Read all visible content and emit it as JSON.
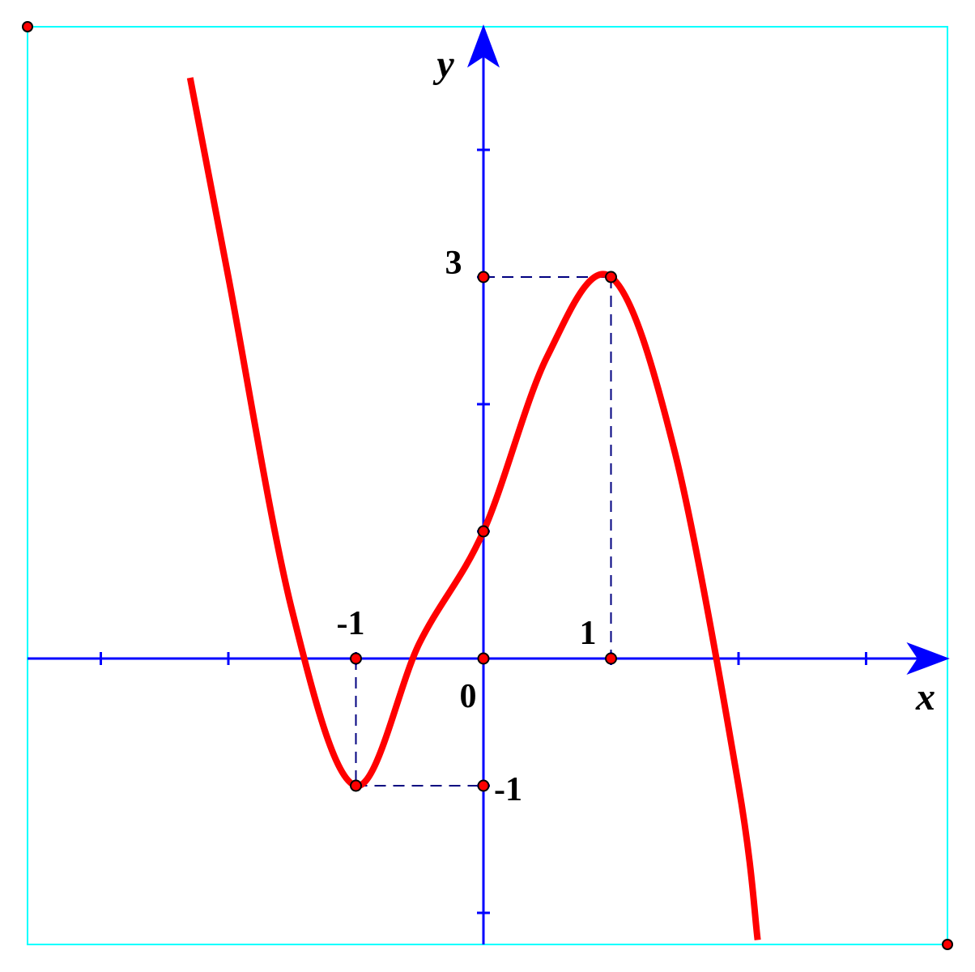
{
  "chart_data": {
    "type": "line",
    "title": "",
    "xlabel": "x",
    "ylabel": "y",
    "xlim": [
      -3.6,
      3.6
    ],
    "ylim": [
      -2.25,
      5.05
    ],
    "series": [
      {
        "x": [
          -2.3,
          -2.0,
          -1.5,
          -1.0,
          -0.5,
          0.0,
          0.5,
          1.0,
          1.5,
          2.0,
          2.15
        ],
        "y": [
          4.567,
          3.0,
          0.375,
          -1.0,
          0.125,
          1.0,
          2.375,
          3.0,
          1.625,
          -1.0,
          -2.213
        ]
      }
    ],
    "x_ticks": [
      -3,
      -2,
      -1,
      0,
      1,
      2,
      3
    ],
    "y_ticks": [
      -2,
      -1,
      0,
      1,
      2,
      3,
      4
    ],
    "tick_labels": {
      "x_minus1": "-1",
      "origin": "0",
      "x_1": "1",
      "y_3": "3",
      "y_minus1": "-1"
    },
    "points": [
      {
        "x": -1,
        "y": 0
      },
      {
        "x": 0,
        "y": 0
      },
      {
        "x": 1,
        "y": 0
      },
      {
        "x": 0,
        "y": 3
      },
      {
        "x": 0,
        "y": 1
      },
      {
        "x": 0,
        "y": -1
      },
      {
        "x": -1,
        "y": -1
      },
      {
        "x": 1,
        "y": 3
      }
    ],
    "guides": [
      {
        "from": [
          -1,
          0
        ],
        "to": [
          -1,
          -1
        ]
      },
      {
        "from": [
          -1,
          -1
        ],
        "to": [
          0,
          -1
        ]
      },
      {
        "from": [
          0,
          3
        ],
        "to": [
          1,
          3
        ]
      },
      {
        "from": [
          1,
          3
        ],
        "to": [
          1,
          0
        ]
      }
    ],
    "grid": false,
    "legend": "none",
    "colors": {
      "curve": "#ff0000",
      "axes": "#0000ff",
      "guides": "#000080",
      "frame": "#00ffff",
      "point_fill": "#ff0000",
      "point_stroke": "#000000"
    }
  }
}
